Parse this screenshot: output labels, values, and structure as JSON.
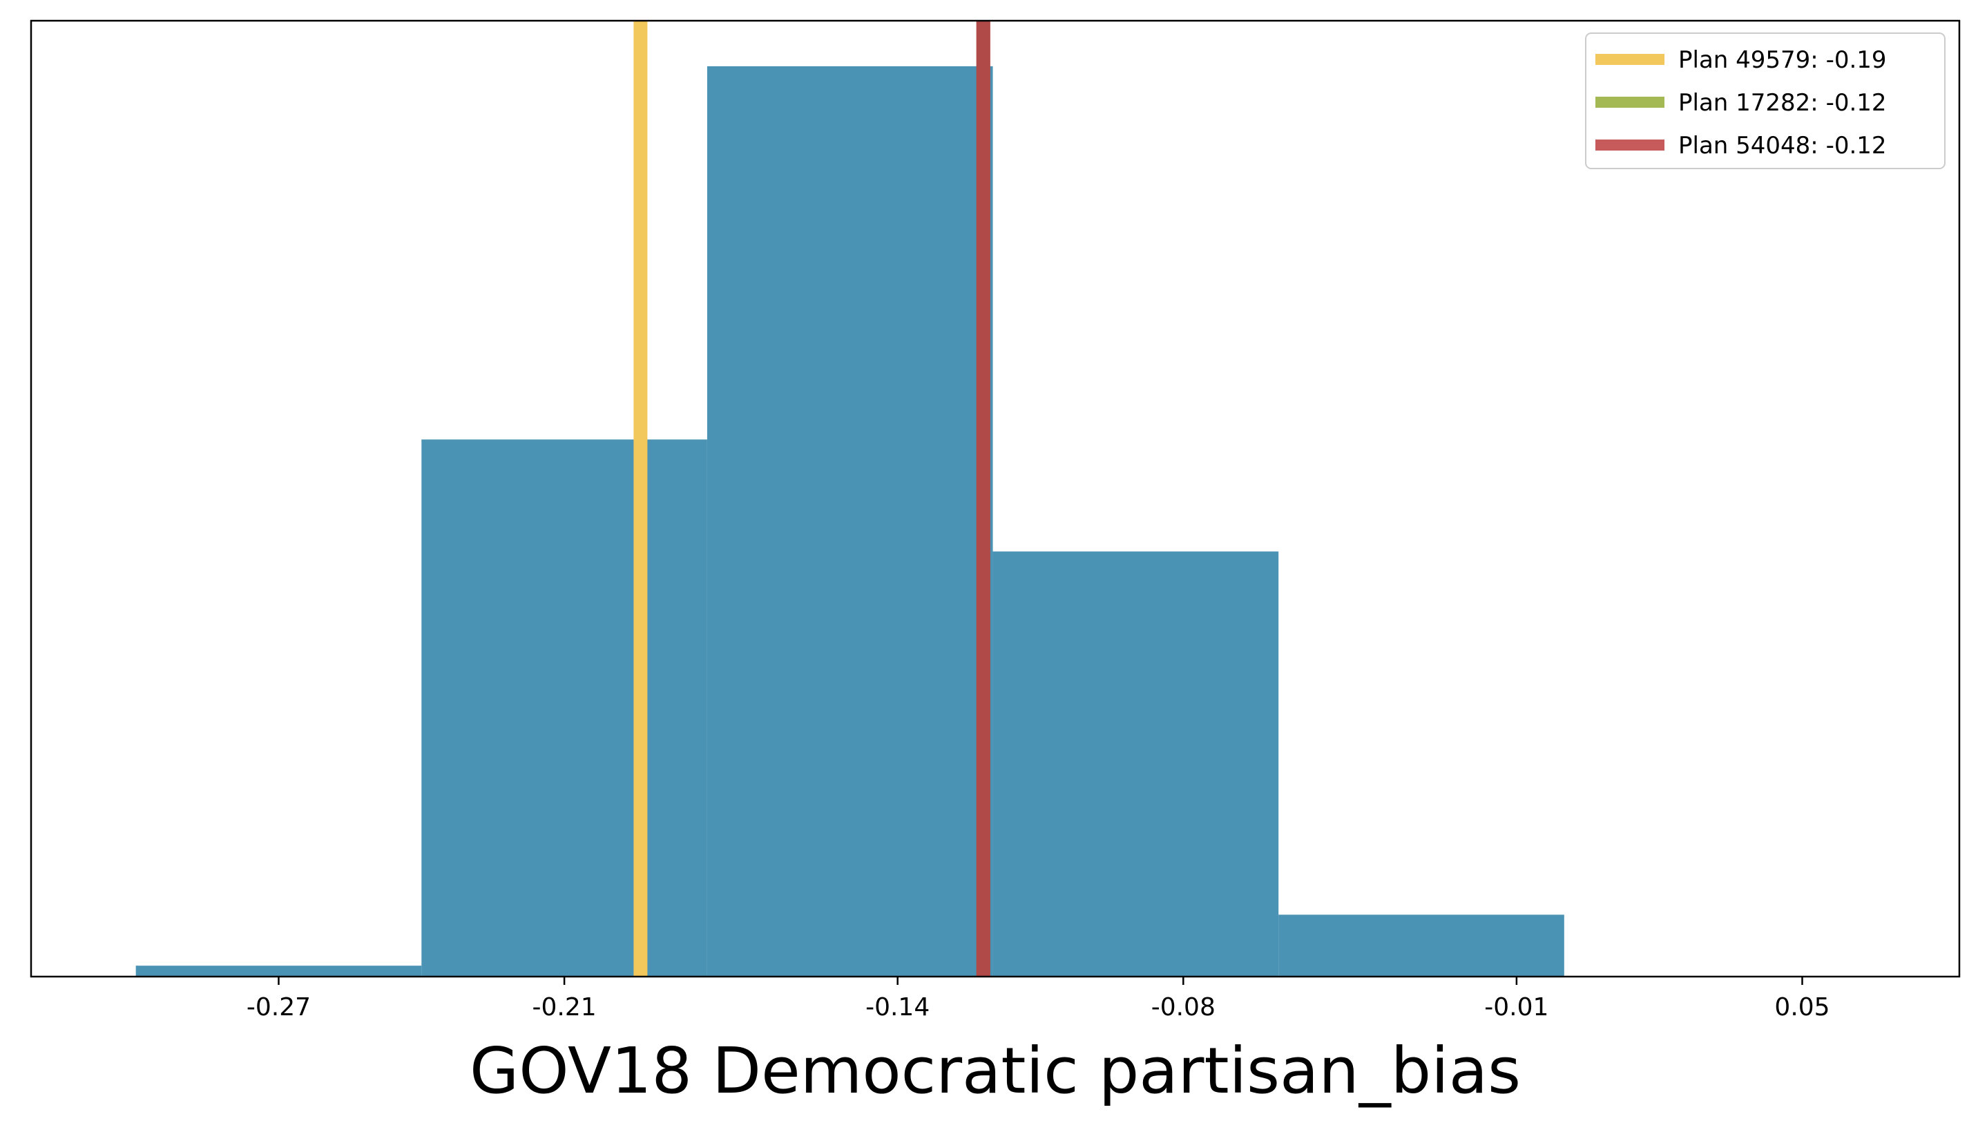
{
  "chart_data": {
    "type": "bar",
    "subtype": "histogram",
    "xlabel": "GOV18 Democratic partisan_bias",
    "ylabel": "",
    "title": "",
    "xticks": [
      "-0.27",
      "-0.21",
      "-0.14",
      "-0.08",
      "-0.01",
      "0.05"
    ],
    "xtick_values": [
      -0.27,
      -0.21,
      -0.14,
      -0.08,
      -0.01,
      0.05
    ],
    "xlim": [
      -0.322,
      0.083
    ],
    "ylim": [
      0,
      1.05
    ],
    "bin_edges": [
      -0.3,
      -0.24,
      -0.18,
      -0.12,
      -0.06,
      0.0
    ],
    "bin_values": [
      0.012,
      0.59,
      1.0,
      0.467,
      0.068
    ],
    "bar_color": "#4a93b4",
    "grid": false,
    "legend_position": "top-right",
    "reference_lines": [
      {
        "label": "Plan 49579: -0.19",
        "x": -0.194,
        "color": "#f2c75c"
      },
      {
        "label": "Plan 17282: -0.12",
        "x": -0.122,
        "color": "#a4b854"
      },
      {
        "label": "Plan 54048: -0.12",
        "x": -0.122,
        "color": "#c75b5c"
      }
    ],
    "overlap_line_color": "#b04a48"
  }
}
